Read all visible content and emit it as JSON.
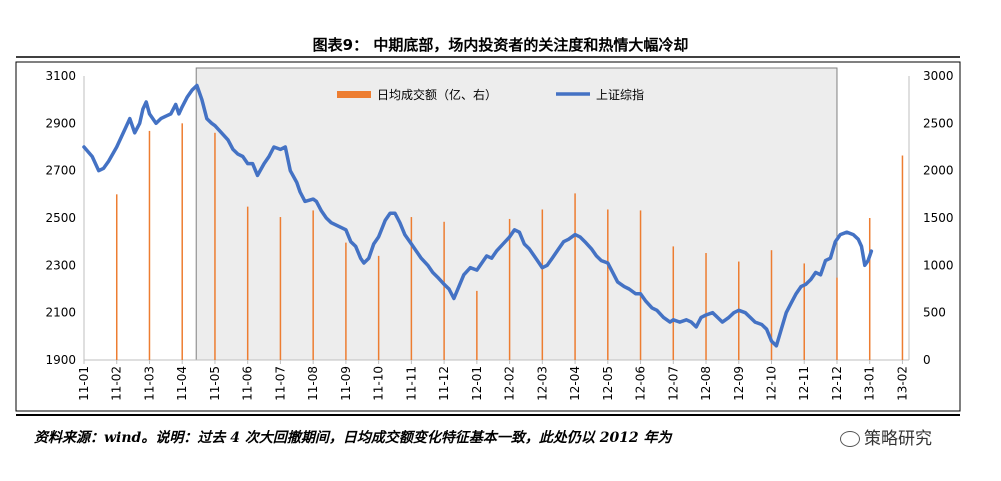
{
  "title": "图表9： 中期底部，场内投资者的关注度和热情大幅冷却",
  "footnote": "资料来源：wind。说明：过去 4 次大回撤期间，日均成交额变化特征基本一致，此处仍以 2012 年为",
  "watermark": "策略研究",
  "colors": {
    "line": "#4472C4",
    "bar": "#ED7D31",
    "shade": "#EDEDED",
    "shade_border": "#808080"
  },
  "chart_data": {
    "type": "line+bar",
    "left_axis": {
      "min": 1900,
      "max": 3100,
      "ticks": [
        1900,
        2100,
        2300,
        2500,
        2700,
        2900,
        3100
      ]
    },
    "right_axis": {
      "min": 0,
      "max": 3000,
      "ticks": [
        0,
        500,
        1000,
        1500,
        2000,
        2500,
        3000
      ]
    },
    "x_ticks": [
      "11-01",
      "11-02",
      "11-03",
      "11-04",
      "11-05",
      "11-06",
      "11-07",
      "11-08",
      "11-09",
      "11-10",
      "11-11",
      "11-12",
      "12-01",
      "12-02",
      "12-03",
      "12-04",
      "12-05",
      "12-06",
      "12-07",
      "12-08",
      "12-09",
      "12-10",
      "12-11",
      "12-12",
      "13-01",
      "13-02"
    ],
    "shaded_range": [
      "11-04",
      "12-12"
    ],
    "series": [
      {
        "name": "日均成交额（亿、右）",
        "axis": "right",
        "type": "bar",
        "points": [
          [
            "11-02",
            1750
          ],
          [
            "11-03",
            2420
          ],
          [
            "11-04",
            2500
          ],
          [
            "11-05",
            2400
          ],
          [
            "11-06",
            1620
          ],
          [
            "11-07",
            1510
          ],
          [
            "11-08",
            1580
          ],
          [
            "11-09",
            1240
          ],
          [
            "11-10",
            1100
          ],
          [
            "11-11",
            1510
          ],
          [
            "11-12",
            1460
          ],
          [
            "12-01",
            730
          ],
          [
            "12-02",
            1490
          ],
          [
            "12-03",
            1590
          ],
          [
            "12-04",
            1760
          ],
          [
            "12-05",
            1590
          ],
          [
            "12-06",
            1580
          ],
          [
            "12-07",
            1200
          ],
          [
            "12-08",
            1130
          ],
          [
            "12-09",
            1040
          ],
          [
            "12-10",
            1160
          ],
          [
            "12-11",
            1020
          ],
          [
            "12-12",
            870
          ],
          [
            "13-01",
            1500
          ],
          [
            "13-02",
            2160
          ]
        ]
      },
      {
        "name": "上证综指",
        "axis": "left",
        "type": "line",
        "points": [
          [
            0.0,
            2800
          ],
          [
            0.25,
            2760
          ],
          [
            0.45,
            2700
          ],
          [
            0.6,
            2710
          ],
          [
            0.75,
            2740
          ],
          [
            1.0,
            2800
          ],
          [
            1.2,
            2860
          ],
          [
            1.4,
            2920
          ],
          [
            1.55,
            2860
          ],
          [
            1.7,
            2900
          ],
          [
            1.8,
            2960
          ],
          [
            1.9,
            2990
          ],
          [
            2.0,
            2940
          ],
          [
            2.1,
            2920
          ],
          [
            2.2,
            2900
          ],
          [
            2.35,
            2920
          ],
          [
            2.5,
            2930
          ],
          [
            2.65,
            2940
          ],
          [
            2.8,
            2980
          ],
          [
            2.9,
            2940
          ],
          [
            3.0,
            2970
          ],
          [
            3.15,
            3010
          ],
          [
            3.3,
            3040
          ],
          [
            3.45,
            3060
          ],
          [
            3.6,
            3000
          ],
          [
            3.75,
            2920
          ],
          [
            3.9,
            2900
          ],
          [
            4.0,
            2890
          ],
          [
            4.2,
            2860
          ],
          [
            4.4,
            2830
          ],
          [
            4.55,
            2790
          ],
          [
            4.7,
            2770
          ],
          [
            4.85,
            2760
          ],
          [
            5.0,
            2730
          ],
          [
            5.15,
            2730
          ],
          [
            5.3,
            2680
          ],
          [
            5.5,
            2730
          ],
          [
            5.65,
            2760
          ],
          [
            5.8,
            2800
          ],
          [
            6.0,
            2790
          ],
          [
            6.15,
            2800
          ],
          [
            6.3,
            2700
          ],
          [
            6.5,
            2650
          ],
          [
            6.6,
            2610
          ],
          [
            6.75,
            2570
          ],
          [
            7.0,
            2580
          ],
          [
            7.1,
            2570
          ],
          [
            7.25,
            2530
          ],
          [
            7.4,
            2500
          ],
          [
            7.55,
            2480
          ],
          [
            7.7,
            2470
          ],
          [
            8.0,
            2450
          ],
          [
            8.15,
            2400
          ],
          [
            8.3,
            2380
          ],
          [
            8.45,
            2330
          ],
          [
            8.55,
            2310
          ],
          [
            8.7,
            2330
          ],
          [
            8.85,
            2390
          ],
          [
            9.0,
            2420
          ],
          [
            9.2,
            2490
          ],
          [
            9.35,
            2520
          ],
          [
            9.5,
            2520
          ],
          [
            9.65,
            2480
          ],
          [
            9.8,
            2430
          ],
          [
            10.0,
            2390
          ],
          [
            10.15,
            2360
          ],
          [
            10.3,
            2330
          ],
          [
            10.5,
            2300
          ],
          [
            10.65,
            2270
          ],
          [
            10.8,
            2250
          ],
          [
            11.0,
            2220
          ],
          [
            11.15,
            2200
          ],
          [
            11.3,
            2160
          ],
          [
            11.45,
            2210
          ],
          [
            11.6,
            2260
          ],
          [
            11.8,
            2290
          ],
          [
            12.0,
            2280
          ],
          [
            12.15,
            2310
          ],
          [
            12.3,
            2340
          ],
          [
            12.45,
            2330
          ],
          [
            12.6,
            2360
          ],
          [
            12.8,
            2390
          ],
          [
            13.0,
            2420
          ],
          [
            13.15,
            2450
          ],
          [
            13.3,
            2440
          ],
          [
            13.45,
            2390
          ],
          [
            13.6,
            2370
          ],
          [
            13.8,
            2330
          ],
          [
            14.0,
            2290
          ],
          [
            14.15,
            2300
          ],
          [
            14.3,
            2330
          ],
          [
            14.5,
            2370
          ],
          [
            14.65,
            2400
          ],
          [
            14.8,
            2410
          ],
          [
            15.0,
            2430
          ],
          [
            15.15,
            2420
          ],
          [
            15.3,
            2400
          ],
          [
            15.5,
            2370
          ],
          [
            15.65,
            2340
          ],
          [
            15.8,
            2320
          ],
          [
            16.0,
            2310
          ],
          [
            16.15,
            2270
          ],
          [
            16.3,
            2230
          ],
          [
            16.5,
            2210
          ],
          [
            16.65,
            2200
          ],
          [
            16.85,
            2180
          ],
          [
            17.0,
            2180
          ],
          [
            17.15,
            2150
          ],
          [
            17.35,
            2120
          ],
          [
            17.5,
            2110
          ],
          [
            17.7,
            2080
          ],
          [
            17.9,
            2060
          ],
          [
            18.0,
            2070
          ],
          [
            18.2,
            2060
          ],
          [
            18.4,
            2070
          ],
          [
            18.55,
            2060
          ],
          [
            18.7,
            2040
          ],
          [
            18.85,
            2080
          ],
          [
            19.0,
            2090
          ],
          [
            19.2,
            2100
          ],
          [
            19.35,
            2080
          ],
          [
            19.5,
            2060
          ],
          [
            19.7,
            2080
          ],
          [
            19.85,
            2100
          ],
          [
            20.0,
            2110
          ],
          [
            20.2,
            2100
          ],
          [
            20.35,
            2080
          ],
          [
            20.5,
            2060
          ],
          [
            20.7,
            2050
          ],
          [
            20.85,
            2030
          ],
          [
            21.0,
            1980
          ],
          [
            21.15,
            1960
          ],
          [
            21.3,
            2030
          ],
          [
            21.45,
            2100
          ],
          [
            21.6,
            2140
          ],
          [
            21.75,
            2180
          ],
          [
            21.9,
            2210
          ],
          [
            22.05,
            2220
          ],
          [
            22.2,
            2240
          ],
          [
            22.35,
            2270
          ],
          [
            22.5,
            2260
          ],
          [
            22.65,
            2320
          ],
          [
            22.8,
            2330
          ],
          [
            22.95,
            2400
          ],
          [
            23.1,
            2430
          ],
          [
            23.3,
            2440
          ],
          [
            23.5,
            2430
          ],
          [
            23.65,
            2410
          ],
          [
            23.75,
            2380
          ],
          [
            23.85,
            2300
          ],
          [
            23.95,
            2320
          ],
          [
            24.05,
            2360
          ]
        ]
      }
    ],
    "legend_position": "top-center"
  }
}
